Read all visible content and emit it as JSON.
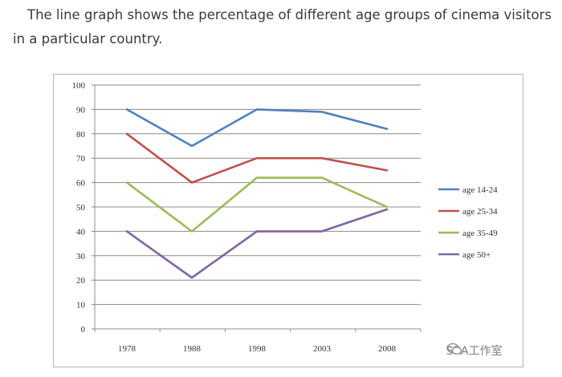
{
  "prompt": {
    "line1": "The line graph shows the percentage of different age groups of cinema visitors",
    "line2": "in a particular country."
  },
  "watermark": {
    "text": "SRA工作室",
    "icon": "wechat-icon"
  },
  "chart_data": {
    "type": "line",
    "title": "",
    "xlabel": "",
    "ylabel": "",
    "categories": [
      "1978",
      "1988",
      "1998",
      "2003",
      "2008"
    ],
    "ylim": [
      0,
      100
    ],
    "yticks": [
      0,
      10,
      20,
      30,
      40,
      50,
      60,
      70,
      80,
      90,
      100
    ],
    "grid": true,
    "legend_position": "right",
    "series": [
      {
        "name": "age 14-24",
        "color": "#4f81bd",
        "values": [
          90,
          75,
          90,
          89,
          82
        ]
      },
      {
        "name": "age 25-34",
        "color": "#c0504d",
        "values": [
          80,
          60,
          70,
          70,
          65
        ]
      },
      {
        "name": "age 35-49",
        "color": "#9bbb59",
        "values": [
          60,
          40,
          62,
          62,
          50
        ]
      },
      {
        "name": "age 50+",
        "color": "#8064a2",
        "values": [
          40,
          21,
          40,
          40,
          49
        ]
      }
    ]
  }
}
